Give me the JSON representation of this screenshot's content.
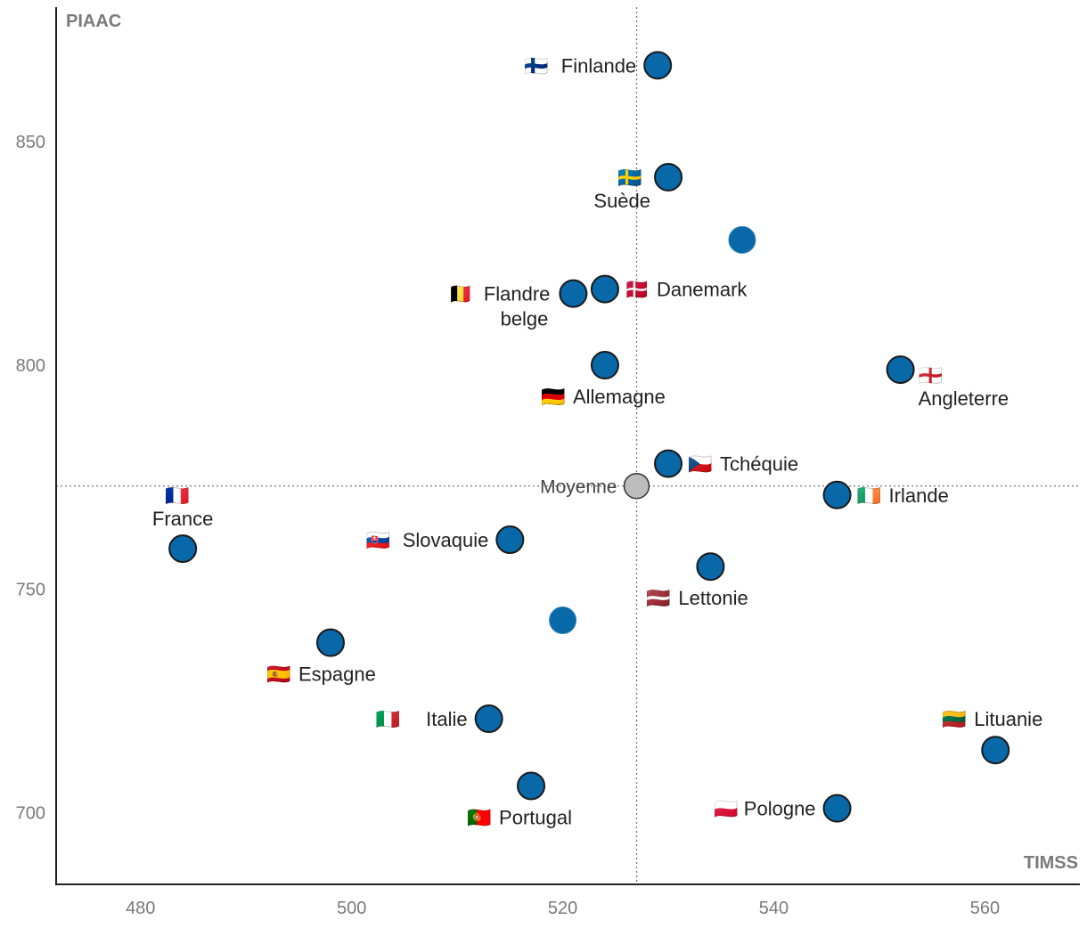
{
  "chart_data": {
    "type": "scatter",
    "xlabel": "TIMSS",
    "ylabel": "PIAAC",
    "xlim": [
      472,
      569
    ],
    "ylim": [
      684,
      880
    ],
    "x_ticks": [
      480,
      500,
      520,
      540,
      560
    ],
    "y_ticks": [
      700,
      750,
      800,
      850
    ],
    "grid": false,
    "colors": {
      "point": "#0868a8",
      "point_stroke": "#1a1a1a",
      "average": "#bdbdbd",
      "reference_line": "#777777"
    },
    "average": {
      "label": "Moyenne",
      "x": 527,
      "y": 773
    },
    "points": [
      {
        "label": "Finlande",
        "flag": "🇫🇮",
        "x": 529,
        "y": 867,
        "label_pos": "left"
      },
      {
        "label": "Suède",
        "flag": "🇸🇪",
        "x": 530,
        "y": 842,
        "label_pos": "below-left"
      },
      {
        "label": "",
        "flag": "",
        "x": 537,
        "y": 828,
        "label_pos": "none",
        "outline": false
      },
      {
        "label": "Flandre belge",
        "flag": "🇧🇪",
        "x": 521,
        "y": 816,
        "label_pos": "left"
      },
      {
        "label": "Danemark",
        "flag": "🇩🇰",
        "x": 524,
        "y": 817,
        "label_pos": "right"
      },
      {
        "label": "Allemagne",
        "flag": "🇩🇪",
        "x": 524,
        "y": 800,
        "label_pos": "below"
      },
      {
        "label": "Angleterre",
        "flag": "🏴󠁧󠁢󠁥󠁮󠁧󠁿",
        "x": 552,
        "y": 799,
        "label_pos": "below-right"
      },
      {
        "label": "Tchéquie",
        "flag": "🇨🇿",
        "x": 530,
        "y": 778,
        "label_pos": "right"
      },
      {
        "label": "Irlande",
        "flag": "🇮🇪",
        "x": 546,
        "y": 771,
        "label_pos": "right"
      },
      {
        "label": "France",
        "flag": "🇫🇷",
        "x": 484,
        "y": 759,
        "label_pos": "above"
      },
      {
        "label": "Slovaquie",
        "flag": "🇸🇰",
        "x": 515,
        "y": 761,
        "label_pos": "left"
      },
      {
        "label": "Lettonie",
        "flag": "🇱🇻",
        "x": 534,
        "y": 755,
        "label_pos": "below"
      },
      {
        "label": "",
        "flag": "",
        "x": 520,
        "y": 743,
        "label_pos": "none",
        "outline": false
      },
      {
        "label": "Espagne",
        "flag": "🇪🇸",
        "x": 498,
        "y": 738,
        "label_pos": "below"
      },
      {
        "label": "Italie",
        "flag": "🇮🇹",
        "x": 513,
        "y": 721,
        "label_pos": "left"
      },
      {
        "label": "Lituanie",
        "flag": "🇱🇹",
        "x": 561,
        "y": 714,
        "label_pos": "above-left"
      },
      {
        "label": "Portugal",
        "flag": "🇵🇹",
        "x": 517,
        "y": 706,
        "label_pos": "below"
      },
      {
        "label": "Pologne",
        "flag": "🇵🇱",
        "x": 546,
        "y": 701,
        "label_pos": "left"
      }
    ]
  }
}
